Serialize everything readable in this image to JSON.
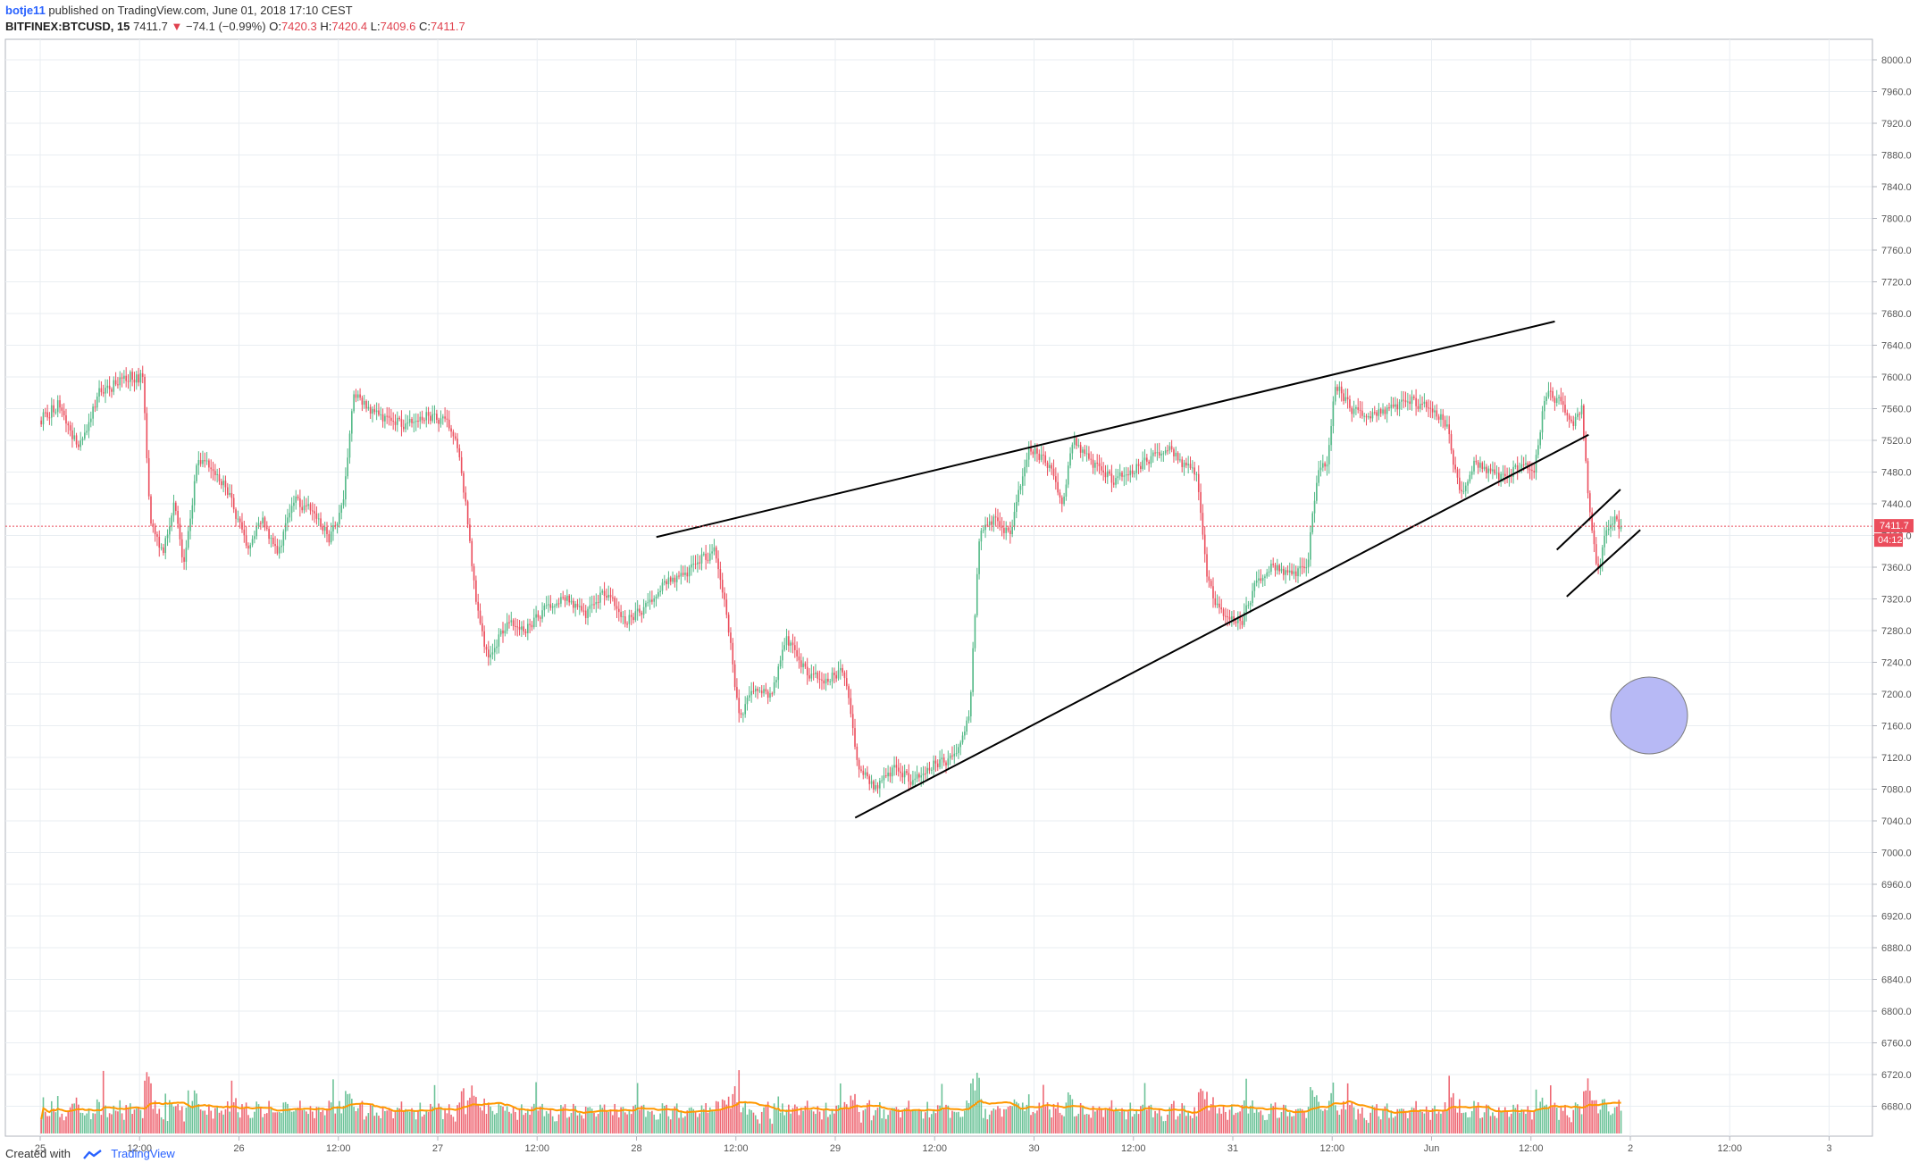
{
  "header": {
    "author": "botje11",
    "published": " published on TradingView.com, June 01, 2018 17:10 CEST",
    "symbol": "BITFINEX:BTCUSD, 15",
    "last": "7411.7",
    "change_arrow": "▼",
    "change": "−74.1 (−0.99%)",
    "o_label": "O:",
    "o": "7420.3",
    "h_label": "H:",
    "h": "7420.4",
    "l_label": "L:",
    "l": "7409.6",
    "c_label": "C:",
    "c": "7411.7"
  },
  "footer": {
    "created_with": "Created with",
    "brand": "TradingView"
  },
  "colors": {
    "up": "#53b987",
    "down": "#eb4d5c",
    "grid": "#e9eef2",
    "axis": "#555555",
    "last_price_bg": "#eb4d5c",
    "ma_orange": "#ff9800",
    "ma_red": "#e5283a",
    "circle_fill": "#b7b9f5",
    "trendline": "#000000"
  },
  "chart_data": {
    "type": "candlestick",
    "symbol": "BITFINEX:BTCUSD",
    "interval": "15",
    "x_ticks": [
      "25",
      "12:00",
      "26",
      "12:00",
      "27",
      "12:00",
      "28",
      "12:00",
      "29",
      "12:00",
      "30",
      "12:00",
      "31",
      "12:00",
      "Jun",
      "12:00",
      "2",
      "12:00",
      "3"
    ],
    "y_ticks": [
      "8000.0",
      "7960.0",
      "7920.0",
      "7880.0",
      "7840.0",
      "7800.0",
      "7760.0",
      "7720.0",
      "7680.0",
      "7640.0",
      "7600.0",
      "7560.0",
      "7520.0",
      "7480.0",
      "7440.0",
      "7400.0",
      "7360.0",
      "7320.0",
      "7280.0",
      "7240.0",
      "7200.0",
      "7160.0",
      "7120.0",
      "7080.0",
      "7040.0",
      "7000.0",
      "6960.0",
      "6920.0",
      "6880.0",
      "6840.0",
      "6800.0",
      "6760.0",
      "6720.0",
      "6680.0"
    ],
    "ylim": [
      6668,
      8010
    ],
    "xlim_days": [
      0,
      9.3
    ],
    "last_price_label": "7411.7",
    "countdown_label": "04:12",
    "price_path": [
      [
        0.0,
        7545
      ],
      [
        0.1,
        7565
      ],
      [
        0.2,
        7510
      ],
      [
        0.3,
        7580
      ],
      [
        0.38,
        7590
      ],
      [
        0.45,
        7600
      ],
      [
        0.52,
        7598
      ],
      [
        0.56,
        7420
      ],
      [
        0.62,
        7380
      ],
      [
        0.68,
        7440
      ],
      [
        0.73,
        7360
      ],
      [
        0.8,
        7500
      ],
      [
        0.88,
        7480
      ],
      [
        0.95,
        7455
      ],
      [
        1.0,
        7420
      ],
      [
        1.05,
        7385
      ],
      [
        1.12,
        7420
      ],
      [
        1.2,
        7375
      ],
      [
        1.28,
        7445
      ],
      [
        1.38,
        7430
      ],
      [
        1.46,
        7395
      ],
      [
        1.53,
        7440
      ],
      [
        1.58,
        7580
      ],
      [
        1.65,
        7560
      ],
      [
        1.75,
        7545
      ],
      [
        1.85,
        7540
      ],
      [
        1.95,
        7550
      ],
      [
        2.05,
        7545
      ],
      [
        2.1,
        7520
      ],
      [
        2.15,
        7430
      ],
      [
        2.2,
        7310
      ],
      [
        2.26,
        7240
      ],
      [
        2.35,
        7290
      ],
      [
        2.45,
        7280
      ],
      [
        2.55,
        7310
      ],
      [
        2.65,
        7320
      ],
      [
        2.75,
        7300
      ],
      [
        2.85,
        7330
      ],
      [
        2.95,
        7290
      ],
      [
        3.05,
        7310
      ],
      [
        3.15,
        7340
      ],
      [
        3.25,
        7350
      ],
      [
        3.33,
        7370
      ],
      [
        3.4,
        7380
      ],
      [
        3.46,
        7300
      ],
      [
        3.52,
        7170
      ],
      [
        3.6,
        7210
      ],
      [
        3.68,
        7195
      ],
      [
        3.76,
        7270
      ],
      [
        3.85,
        7230
      ],
      [
        3.95,
        7215
      ],
      [
        4.05,
        7230
      ],
      [
        4.12,
        7110
      ],
      [
        4.2,
        7080
      ],
      [
        4.3,
        7105
      ],
      [
        4.4,
        7090
      ],
      [
        4.5,
        7110
      ],
      [
        4.6,
        7120
      ],
      [
        4.68,
        7170
      ],
      [
        4.73,
        7400
      ],
      [
        4.8,
        7420
      ],
      [
        4.88,
        7400
      ],
      [
        4.98,
        7510
      ],
      [
        5.08,
        7490
      ],
      [
        5.15,
        7440
      ],
      [
        5.2,
        7520
      ],
      [
        5.3,
        7490
      ],
      [
        5.4,
        7470
      ],
      [
        5.5,
        7480
      ],
      [
        5.6,
        7500
      ],
      [
        5.68,
        7510
      ],
      [
        5.75,
        7490
      ],
      [
        5.82,
        7480
      ],
      [
        5.88,
        7340
      ],
      [
        5.95,
        7300
      ],
      [
        6.05,
        7290
      ],
      [
        6.12,
        7340
      ],
      [
        6.2,
        7360
      ],
      [
        6.3,
        7350
      ],
      [
        6.38,
        7360
      ],
      [
        6.43,
        7480
      ],
      [
        6.48,
        7490
      ],
      [
        6.52,
        7590
      ],
      [
        6.6,
        7560
      ],
      [
        6.7,
        7550
      ],
      [
        6.8,
        7560
      ],
      [
        6.9,
        7570
      ],
      [
        7.0,
        7560
      ],
      [
        7.08,
        7540
      ],
      [
        7.15,
        7450
      ],
      [
        7.22,
        7490
      ],
      [
        7.3,
        7480
      ],
      [
        7.38,
        7470
      ],
      [
        7.45,
        7490
      ],
      [
        7.52,
        7480
      ],
      [
        7.58,
        7580
      ],
      [
        7.65,
        7570
      ],
      [
        7.72,
        7540
      ],
      [
        7.76,
        7560
      ],
      [
        7.8,
        7430
      ],
      [
        7.84,
        7350
      ],
      [
        7.88,
        7400
      ],
      [
        7.92,
        7420
      ],
      [
        7.95,
        7412
      ]
    ],
    "trendlines": [
      {
        "from": [
          3.1,
          7398
        ],
        "to": [
          7.62,
          7670
        ]
      },
      {
        "from": [
          4.1,
          7044
        ],
        "to": [
          7.79,
          7527
        ]
      },
      {
        "from": [
          7.63,
          7382
        ],
        "to": [
          7.95,
          7458
        ]
      },
      {
        "from": [
          7.68,
          7323
        ],
        "to": [
          8.05,
          7407
        ]
      }
    ]
  }
}
